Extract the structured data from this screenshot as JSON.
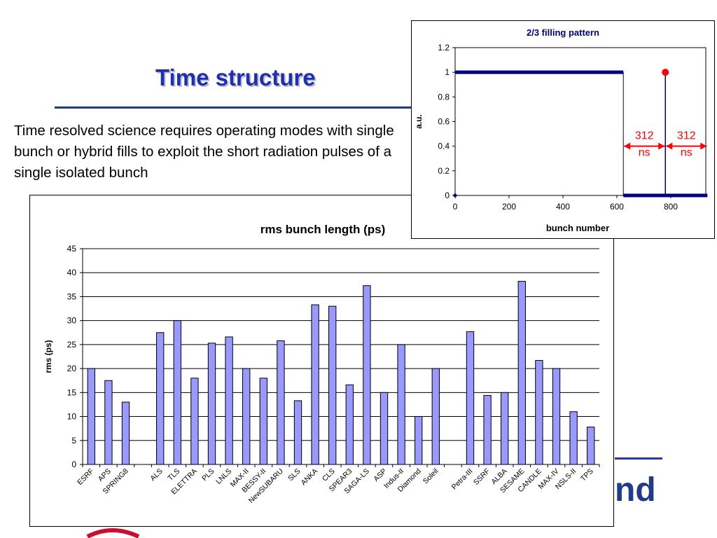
{
  "slide": {
    "title": "Time structure",
    "body": "Time resolved science requires operating modes with single bunch or hybrid fills to exploit the short radiation pulses of a single isolated bunch",
    "logo_text": "nd"
  },
  "colors": {
    "title": "#1f2fb0",
    "bar_fill": "#9999ff",
    "fill_line": "#000080",
    "marker_red": "#ff0000",
    "accent_rule": "#1e3a8a"
  },
  "chart_data": [
    {
      "type": "line",
      "title": "2/3 filling pattern",
      "xlabel": "bunch number",
      "ylabel": "a.u.",
      "xlim": [
        0,
        930
      ],
      "ylim": [
        0,
        1.2
      ],
      "xticks": [
        0,
        200,
        400,
        600,
        800
      ],
      "yticks": [
        0,
        0.2,
        0.4,
        0.6,
        0.8,
        1,
        1.2
      ],
      "ytick_labels": [
        "0",
        "0.2",
        "0.4",
        "0.6",
        "0.8",
        "1",
        "1.2"
      ],
      "series": [
        {
          "values_x": [
            0,
            624,
            624,
            936
          ],
          "values_y": [
            1,
            1,
            0,
            0
          ]
        }
      ],
      "isolated_bunch": {
        "x": 780,
        "y": 1
      },
      "annotations": [
        {
          "line1": "312",
          "line2": "ns",
          "from_x": 624,
          "to_x": 780
        },
        {
          "line1": "312",
          "line2": "ns",
          "from_x": 780,
          "to_x": 936
        }
      ],
      "grid": false
    },
    {
      "type": "bar",
      "title": "rms bunch length (ps)",
      "ylabel": "rms (ps)",
      "xlabel": "",
      "ylim": [
        0,
        45
      ],
      "yticks": [
        0,
        5,
        10,
        15,
        20,
        25,
        30,
        35,
        40,
        45
      ],
      "grid": true,
      "categories": [
        "ESRF",
        "APS",
        "SPRING8",
        "",
        "ALS",
        "TLS",
        "ELETTRA",
        "PLS",
        "LNLS",
        "MAX-II",
        "BESSY-II",
        "NewSUBARU",
        "SLS",
        "ANKA",
        "CLS",
        "SPEAR3",
        "SAGA-LS",
        "ASP",
        "Indus-II",
        "Diamond",
        "Soleil",
        "",
        "Petra-III",
        "SSRF",
        "ALBA",
        "SESAME",
        "CANDLE",
        "MAX-IV",
        "NSLS-II",
        "TPS"
      ],
      "values": [
        20,
        17.5,
        13,
        null,
        27.5,
        30,
        18,
        25.3,
        26.6,
        20,
        18,
        25.8,
        13.3,
        33.3,
        33,
        16.6,
        37.3,
        15,
        25,
        10,
        20,
        null,
        27.7,
        14.4,
        15,
        38.2,
        21.7,
        20,
        11,
        7.8
      ]
    }
  ]
}
